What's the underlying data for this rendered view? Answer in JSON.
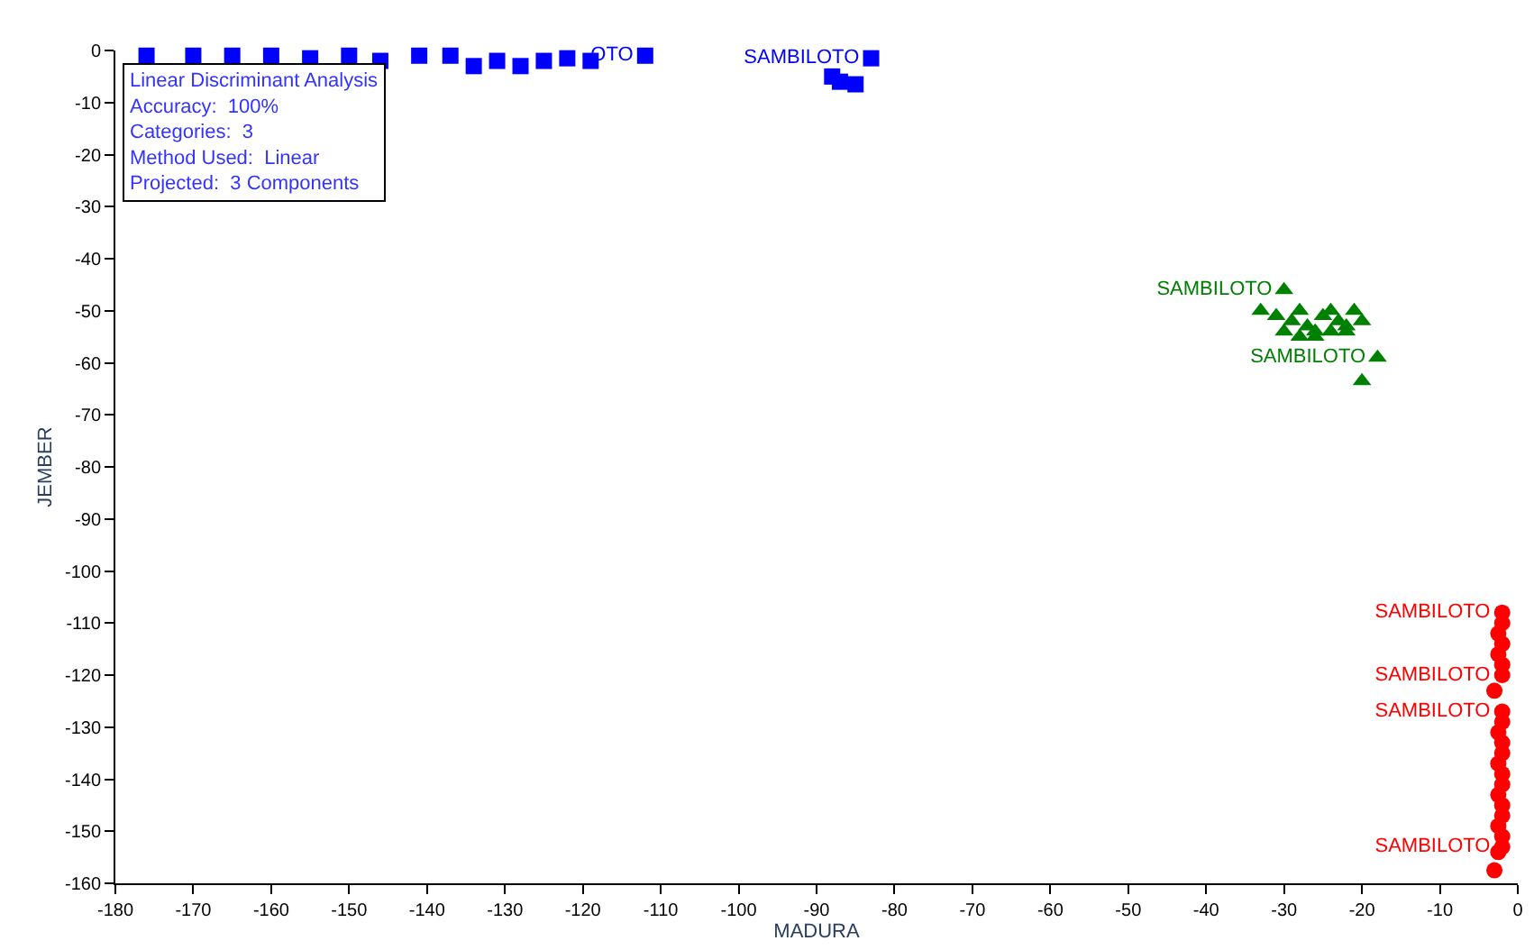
{
  "chart_data": {
    "type": "scatter",
    "xlabel": "MADURA",
    "ylabel": "JEMBER",
    "xlim": [
      -180,
      0
    ],
    "ylim": [
      -160,
      0
    ],
    "xticks": [
      -180,
      -170,
      -160,
      -150,
      -140,
      -130,
      -120,
      -110,
      -100,
      -90,
      -80,
      -70,
      -60,
      -50,
      -40,
      -30,
      -20,
      -10,
      0
    ],
    "yticks": [
      -160,
      -150,
      -140,
      -130,
      -120,
      -110,
      -100,
      -90,
      -80,
      -70,
      -60,
      -50,
      -40,
      -30,
      -20,
      -10,
      0
    ],
    "annotations": [
      "Linear Discriminant Analysis",
      "Accuracy:  100%",
      "Categories:  3",
      "Method Used:  Linear",
      "Projected:  3 Components"
    ],
    "series": [
      {
        "color": "#0000ff",
        "marker": "square",
        "x": [
          -176,
          -170,
          -165,
          -160,
          -155,
          -150,
          -146,
          -141,
          -137,
          -134,
          -131,
          -128,
          -125,
          -122,
          -119,
          -112,
          -88,
          -87,
          -85,
          -83
        ],
        "values": [
          -1,
          -1,
          -1,
          -1,
          -1.5,
          -1,
          -2,
          -1,
          -1,
          -3,
          -2,
          -3,
          -2,
          -1.5,
          -2,
          -1,
          -5,
          -6,
          -6.5,
          -1.5
        ],
        "value_labels": [
          null,
          null,
          null,
          null,
          null,
          null,
          null,
          null,
          null,
          null,
          null,
          null,
          null,
          null,
          null,
          "OTO",
          null,
          null,
          null,
          "SAMBILOTO"
        ]
      },
      {
        "color": "#008000",
        "marker": "triangle",
        "x": [
          -30,
          -33,
          -31,
          -29,
          -28,
          -27,
          -26,
          -25,
          -24,
          -23,
          -22,
          -21,
          -30,
          -28,
          -26,
          -24,
          -22,
          -20,
          -18,
          -20
        ],
        "values": [
          -46,
          -50,
          -51,
          -52,
          -50,
          -53,
          -54,
          -51,
          -50,
          -52,
          -54,
          -50,
          -54,
          -55,
          -55,
          -54,
          -53,
          -52,
          -59,
          -63.5
        ],
        "value_labels": [
          "SAMBILOTO",
          null,
          null,
          null,
          null,
          null,
          null,
          null,
          null,
          null,
          null,
          null,
          null,
          null,
          null,
          null,
          null,
          null,
          "SAMBILOTO",
          null
        ]
      },
      {
        "color": "#ff0000",
        "marker": "circle",
        "x": [
          -2,
          -2,
          -2.5,
          -2,
          -2.5,
          -2,
          -2,
          -3,
          -2,
          -2,
          -2.5,
          -2,
          -2,
          -2.5,
          -2,
          -2,
          -2.5,
          -2,
          -2,
          -2.5,
          -2,
          -2,
          -2.5,
          -3
        ],
        "values": [
          -108,
          -110,
          -112,
          -114,
          -116,
          -118,
          -120,
          -123,
          -127,
          -129,
          -131,
          -133,
          -135,
          -137,
          -139,
          -141,
          -143,
          -145,
          -147,
          -149,
          -151,
          -153,
          -154,
          -157.5
        ],
        "value_labels": [
          "SAMBILOTO",
          null,
          null,
          null,
          null,
          null,
          "SAMBILOTO",
          null,
          "SAMBILOTO",
          null,
          null,
          null,
          null,
          null,
          null,
          null,
          null,
          null,
          null,
          null,
          null,
          "SAMBILOTO",
          null,
          null
        ]
      }
    ]
  }
}
